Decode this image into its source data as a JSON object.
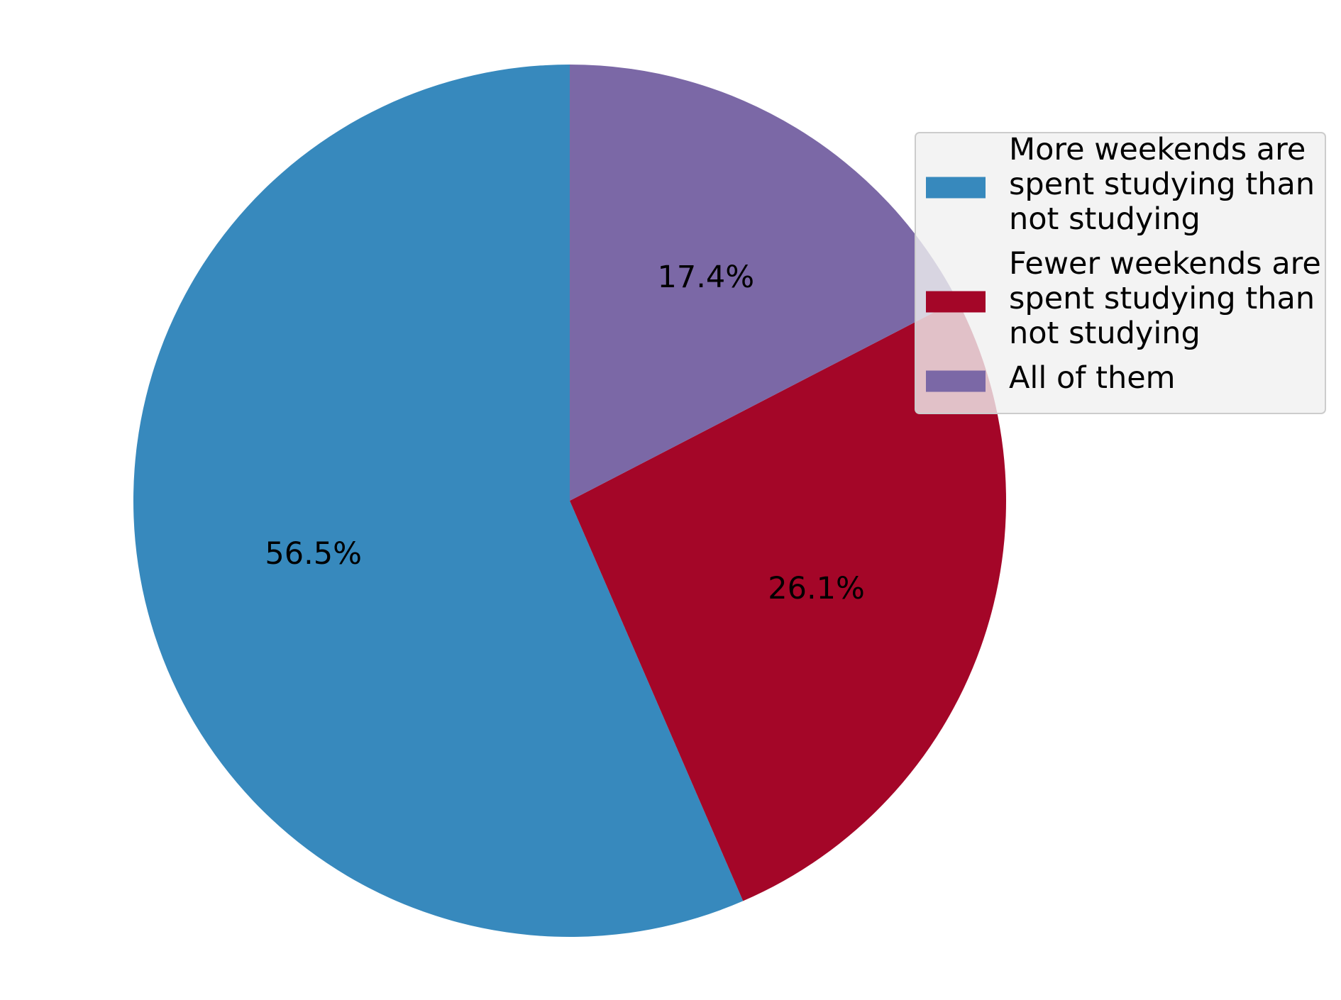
{
  "chart_data": {
    "type": "pie",
    "start_angle_deg": 90,
    "direction": "counterclockwise",
    "slices": [
      {
        "label": "More weekends are spent studying than not studying",
        "legend_lines": [
          "More weekends are",
          "spent studying than",
          "not studying"
        ],
        "value": 56.5,
        "display": "56.5%",
        "color": "#3789bd"
      },
      {
        "label": "Fewer weekends are spent studying than not studying",
        "legend_lines": [
          "Fewer weekends are",
          "spent studying than",
          "not studying"
        ],
        "value": 26.1,
        "display": "26.1%",
        "color": "#a40628"
      },
      {
        "label": "All of them",
        "legend_lines": [
          "All of them"
        ],
        "value": 17.4,
        "display": "17.4%",
        "color": "#7b68a6"
      }
    ],
    "legend_position": "upper-right",
    "title": ""
  }
}
